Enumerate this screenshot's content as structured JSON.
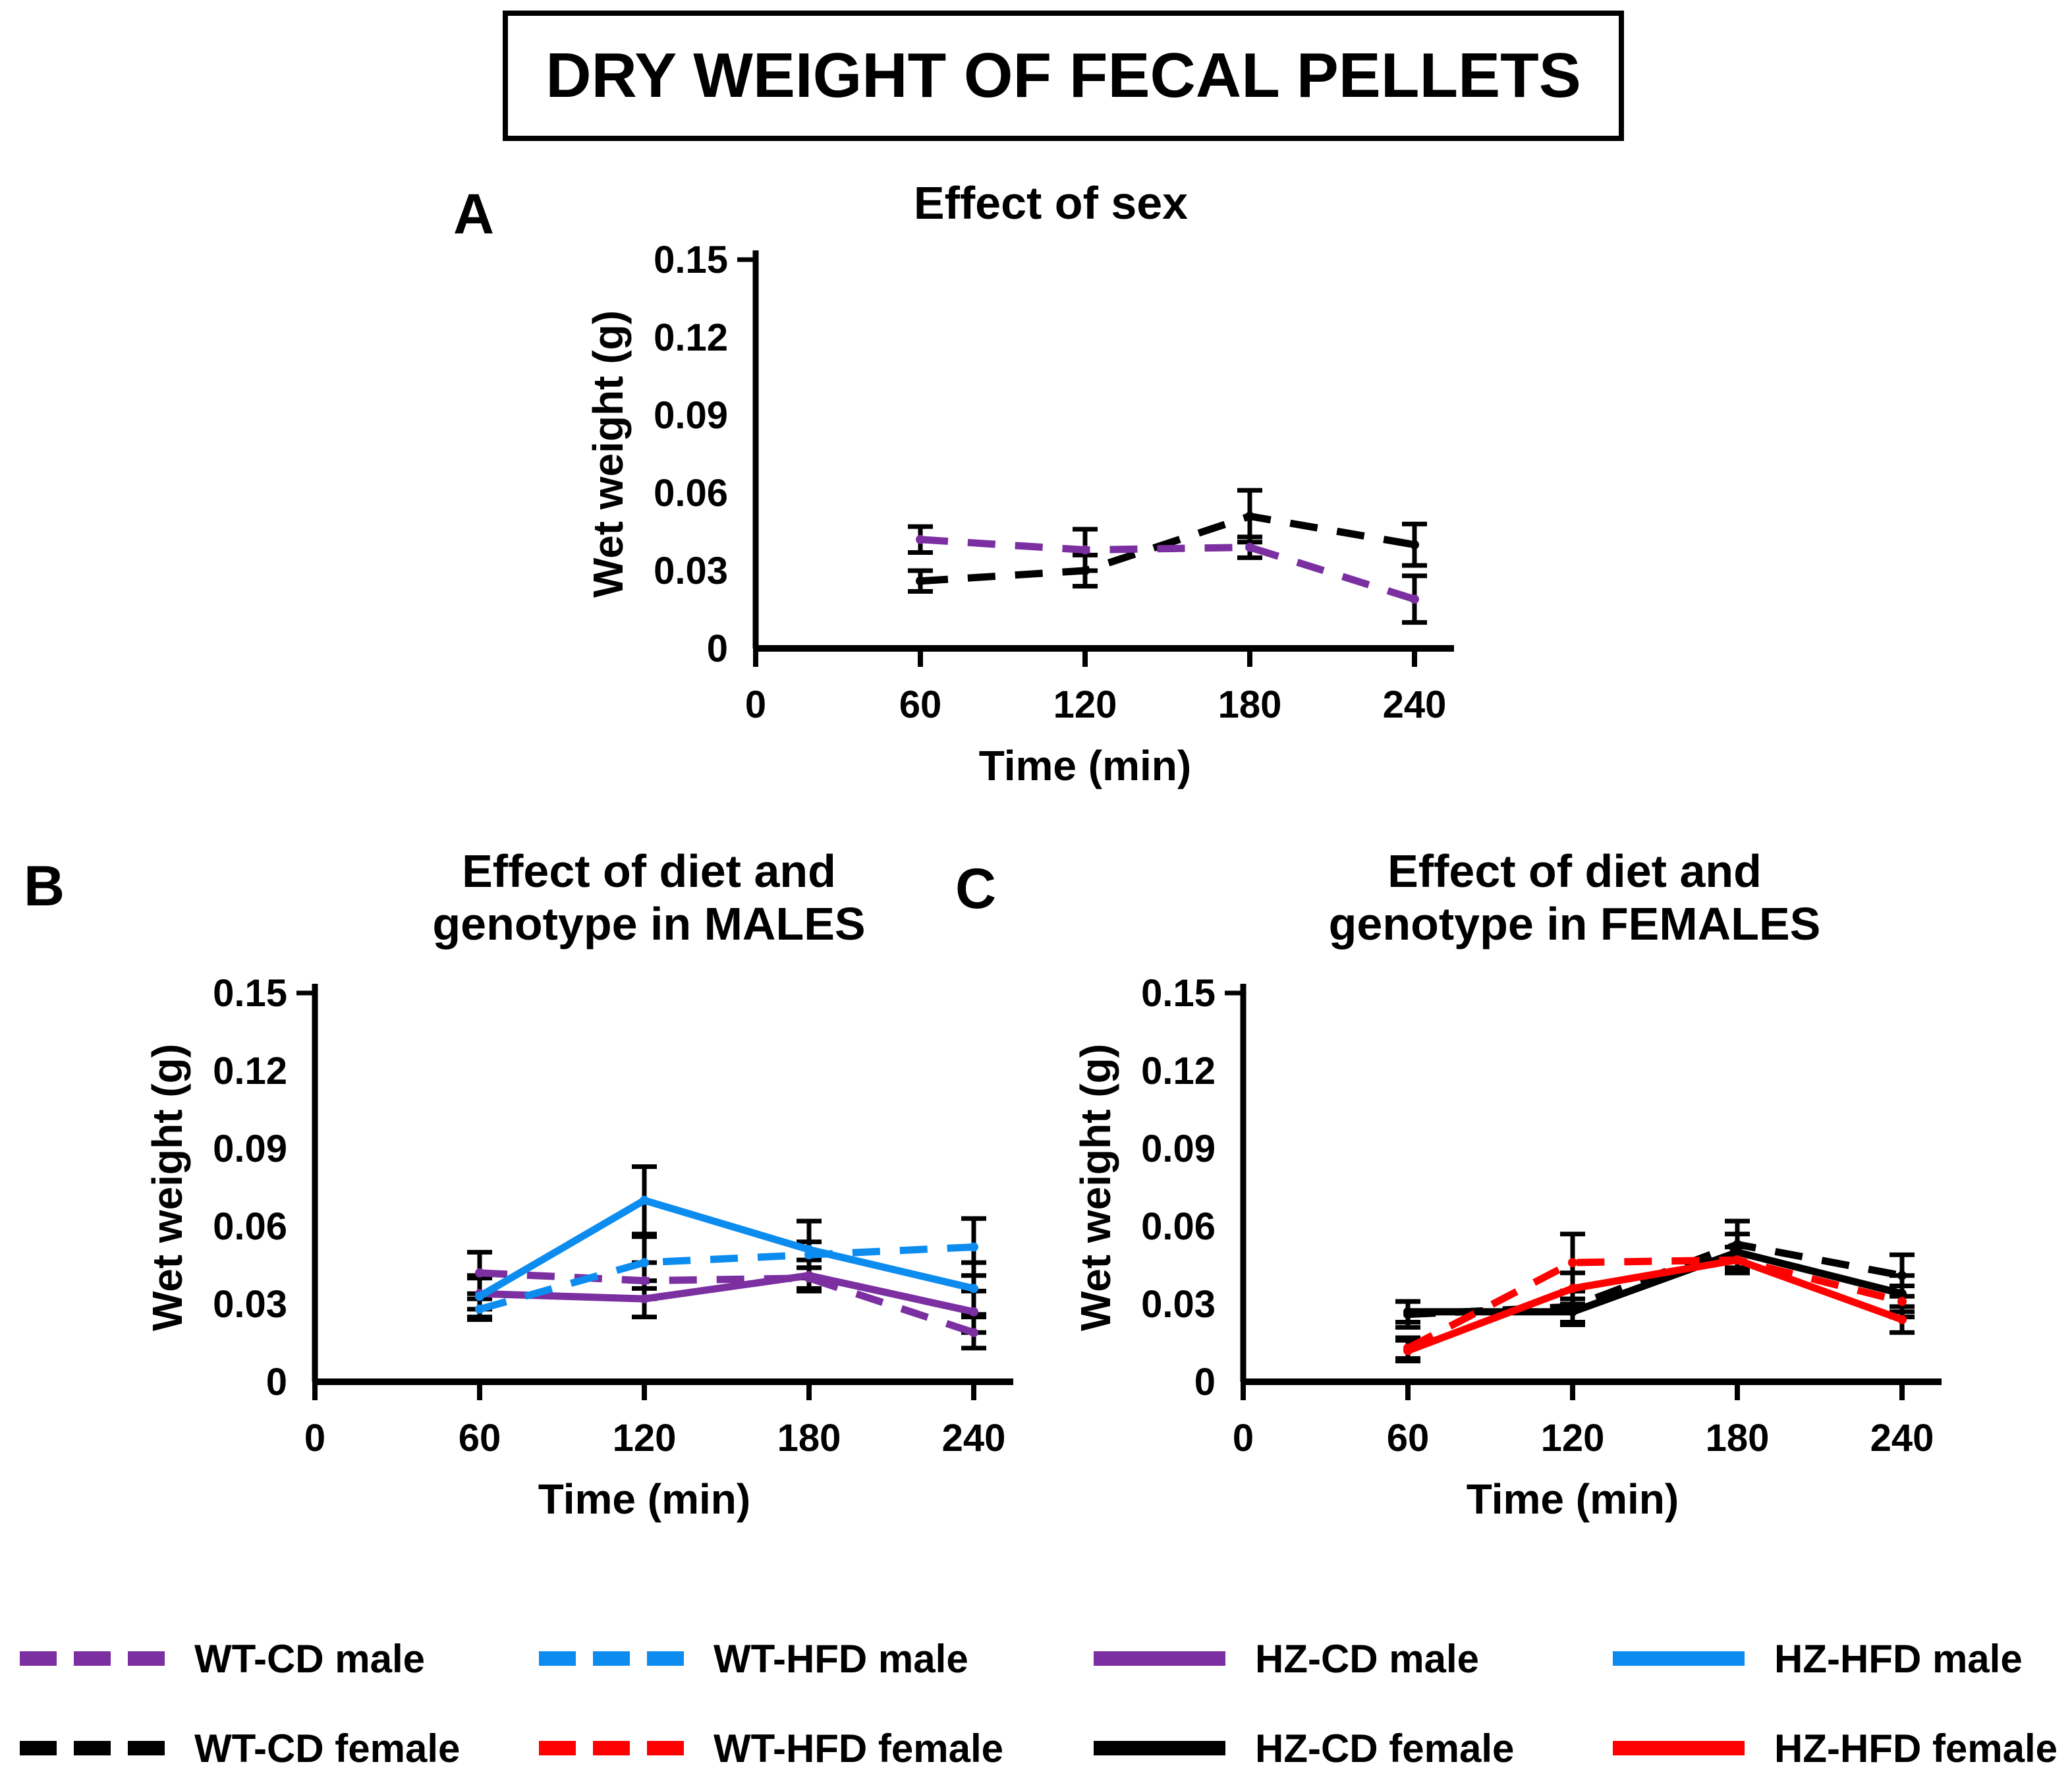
{
  "page_title": "DRY WEIGHT OF FECAL PELLETS",
  "colors": {
    "purple": "#7B2FA0",
    "blue": "#0D8CF0",
    "black": "#000000",
    "red": "#FF0000"
  },
  "chart_data": [
    {
      "id": "A",
      "panel_label": "A",
      "title_lines": [
        "Effect of sex"
      ],
      "type": "line",
      "xlabel": "Time (min)",
      "ylabel": "Wet weight (g)",
      "xticks": [
        0,
        60,
        120,
        180,
        240
      ],
      "yticks": [
        0,
        0.03,
        0.06,
        0.09,
        0.12,
        0.15
      ],
      "ylim": [
        0,
        0.15
      ],
      "x": [
        60,
        120,
        180,
        240
      ],
      "series": [
        {
          "name": "female",
          "color": "black",
          "dash": true,
          "values": [
            0.026,
            0.03,
            0.051,
            0.04
          ],
          "errors": [
            0.004,
            0.006,
            0.01,
            0.008
          ]
        },
        {
          "name": "male",
          "color": "purple",
          "dash": true,
          "values": [
            0.042,
            0.038,
            0.039,
            0.019
          ],
          "errors": [
            0.005,
            0.008,
            0.004,
            0.009
          ]
        }
      ]
    },
    {
      "id": "B",
      "panel_label": "B",
      "title_lines": [
        "Effect of diet and",
        "genotype in MALES"
      ],
      "type": "line",
      "xlabel": "Time (min)",
      "ylabel": "Wet weight (g)",
      "xticks": [
        0,
        60,
        120,
        180,
        240
      ],
      "yticks": [
        0,
        0.03,
        0.06,
        0.09,
        0.12,
        0.15
      ],
      "ylim": [
        0,
        0.15
      ],
      "x": [
        60,
        120,
        180,
        240
      ],
      "series": [
        {
          "name": "WT-CD male",
          "color": "purple",
          "dash": true,
          "values": [
            0.042,
            0.039,
            0.04,
            0.019
          ],
          "errors": [
            0.008,
            0.007,
            0.004,
            0.006
          ]
        },
        {
          "name": "HZ-CD male",
          "color": "purple",
          "dash": false,
          "values": [
            0.034,
            0.032,
            0.041,
            0.027
          ],
          "errors": [
            0.006,
            0.007,
            0.006,
            0.008
          ]
        },
        {
          "name": "WT-HFD male",
          "color": "blue",
          "dash": true,
          "values": [
            0.028,
            0.046,
            0.049,
            0.052
          ],
          "errors": [
            0.004,
            0.01,
            0.005,
            0.011
          ]
        },
        {
          "name": "HZ-HFD male",
          "color": "blue",
          "dash": false,
          "values": [
            0.033,
            0.07,
            0.051,
            0.036
          ],
          "errors": [
            0.008,
            0.013,
            0.011,
            0.01
          ]
        }
      ]
    },
    {
      "id": "C",
      "panel_label": "C",
      "title_lines": [
        "Effect of diet and",
        "genotype in FEMALES"
      ],
      "type": "line",
      "xlabel": "Time (min)",
      "ylabel": "Wet weight (g)",
      "xticks": [
        0,
        60,
        120,
        180,
        240
      ],
      "yticks": [
        0,
        0.03,
        0.06,
        0.09,
        0.12,
        0.15
      ],
      "ylim": [
        0,
        0.15
      ],
      "x": [
        60,
        120,
        180,
        240
      ],
      "series": [
        {
          "name": "HZ-CD female",
          "color": "black",
          "dash": false,
          "values": [
            0.027,
            0.027,
            0.05,
            0.034
          ],
          "errors": [
            0.004,
            0.005,
            0.007,
            0.007
          ]
        },
        {
          "name": "WT-CD female",
          "color": "black",
          "dash": true,
          "values": [
            0.026,
            0.029,
            0.053,
            0.041
          ],
          "errors": [
            0.005,
            0.006,
            0.009,
            0.008
          ]
        },
        {
          "name": "HZ-HFD female",
          "color": "red",
          "dash": false,
          "values": [
            0.012,
            0.036,
            0.047,
            0.024
          ],
          "errors": [
            0.004,
            0.006,
            0.005,
            0.005
          ]
        },
        {
          "name": "WT-HFD female",
          "color": "red",
          "dash": true,
          "values": [
            0.013,
            0.046,
            0.047,
            0.031
          ],
          "errors": [
            0.004,
            0.011,
            0.005,
            0.006
          ]
        }
      ]
    }
  ],
  "legend": {
    "items": [
      {
        "label": "WT-CD male",
        "color": "purple",
        "dash": true
      },
      {
        "label": "WT-HFD male",
        "color": "blue",
        "dash": true
      },
      {
        "label": "HZ-CD male",
        "color": "purple",
        "dash": false
      },
      {
        "label": "HZ-HFD male",
        "color": "blue",
        "dash": false
      },
      {
        "label": "WT-CD female",
        "color": "black",
        "dash": true
      },
      {
        "label": "WT-HFD female",
        "color": "red",
        "dash": true
      },
      {
        "label": "HZ-CD female",
        "color": "black",
        "dash": false
      },
      {
        "label": "HZ-HFD female",
        "color": "red",
        "dash": false
      }
    ]
  }
}
